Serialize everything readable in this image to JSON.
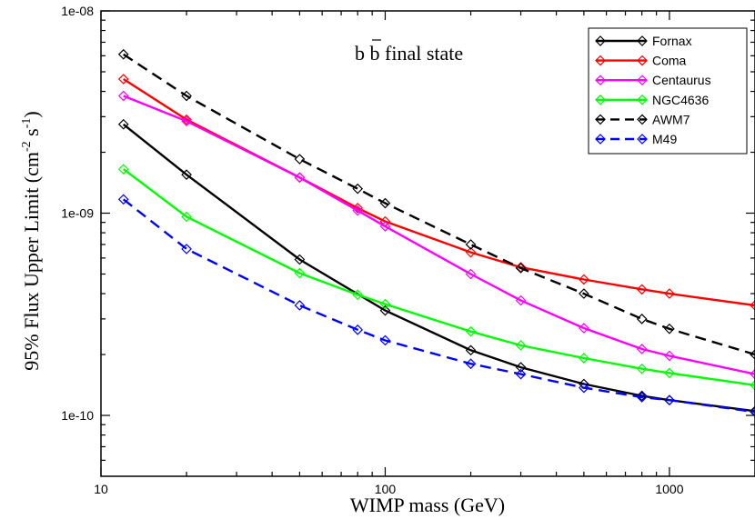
{
  "chart_data": {
    "type": "line",
    "xlabel": "WIMP mass (GeV)",
    "ylabel": "95% Flux Upper Limit (cm",
    "ylabel_sup1": "-2",
    "ylabel_mid": " s",
    "ylabel_sup2": "-1",
    "ylabel_end": ")",
    "annotation": {
      "pre": "b ",
      "bar": "b",
      "post": " final state"
    },
    "x_scale": "log",
    "y_scale": "log",
    "xlim": [
      10,
      2000
    ],
    "ylim": [
      5e-11,
      1e-08
    ],
    "x_ticks": [
      {
        "value": 10,
        "label": "10"
      },
      {
        "value": 100,
        "label": "100"
      },
      {
        "value": 1000,
        "label": "1000"
      }
    ],
    "y_ticks": [
      {
        "value": 1e-10,
        "label": "1e-10"
      },
      {
        "value": 1e-09,
        "label": "1e-09"
      },
      {
        "value": 1e-08,
        "label": "1e-08"
      }
    ],
    "legend_position": "top-right",
    "series": [
      {
        "name": "Fornax",
        "color": "#000000",
        "dashed": false,
        "x": [
          12,
          20,
          50,
          100,
          200,
          300,
          500,
          800,
          1000,
          2000
        ],
        "y": [
          2.75e-09,
          1.55e-09,
          5.9e-10,
          3.3e-10,
          2.1e-10,
          1.73e-10,
          1.43e-10,
          1.25e-10,
          1.19e-10,
          1.05e-10
        ]
      },
      {
        "name": "Coma",
        "color": "#ff0000",
        "dashed": false,
        "x": [
          12,
          20,
          50,
          80,
          100,
          200,
          300,
          500,
          800,
          1000,
          2000
        ],
        "y": [
          4.6e-09,
          2.9e-09,
          1.5e-09,
          1.06e-09,
          9.1e-10,
          6.4e-10,
          5.4e-10,
          4.7e-10,
          4.2e-10,
          4e-10,
          3.5e-10
        ]
      },
      {
        "name": "Centaurus",
        "color": "#ff00ff",
        "dashed": false,
        "x": [
          12,
          20,
          50,
          80,
          100,
          200,
          300,
          500,
          800,
          1000,
          2000
        ],
        "y": [
          3.8e-09,
          2.85e-09,
          1.5e-09,
          1.03e-09,
          8.6e-10,
          5e-10,
          3.7e-10,
          2.7e-10,
          2.13e-10,
          1.97e-10,
          1.6e-10
        ]
      },
      {
        "name": "NGC4636",
        "color": "#00ff00",
        "dashed": false,
        "x": [
          12,
          20,
          50,
          80,
          100,
          200,
          300,
          500,
          800,
          1000,
          2000
        ],
        "y": [
          1.65e-09,
          9.6e-10,
          5.05e-10,
          3.95e-10,
          3.55e-10,
          2.6e-10,
          2.22e-10,
          1.92e-10,
          1.7e-10,
          1.62e-10,
          1.41e-10
        ]
      },
      {
        "name": "AWM7",
        "color": "#000000",
        "dashed": true,
        "x": [
          12,
          20,
          50,
          80,
          100,
          200,
          300,
          500,
          800,
          1000,
          2000
        ],
        "y": [
          6.1e-09,
          3.8e-09,
          1.85e-09,
          1.32e-09,
          1.12e-09,
          7e-10,
          5.35e-10,
          4e-10,
          3e-10,
          2.68e-10,
          2e-10
        ]
      },
      {
        "name": "M49",
        "color": "#0000ff",
        "dashed": true,
        "x": [
          12,
          20,
          50,
          80,
          100,
          200,
          300,
          500,
          800,
          1000,
          2000
        ],
        "y": [
          1.17e-09,
          6.65e-10,
          3.5e-10,
          2.65e-10,
          2.35e-10,
          1.8e-10,
          1.6e-10,
          1.37e-10,
          1.23e-10,
          1.19e-10,
          1.04e-10
        ]
      }
    ]
  }
}
